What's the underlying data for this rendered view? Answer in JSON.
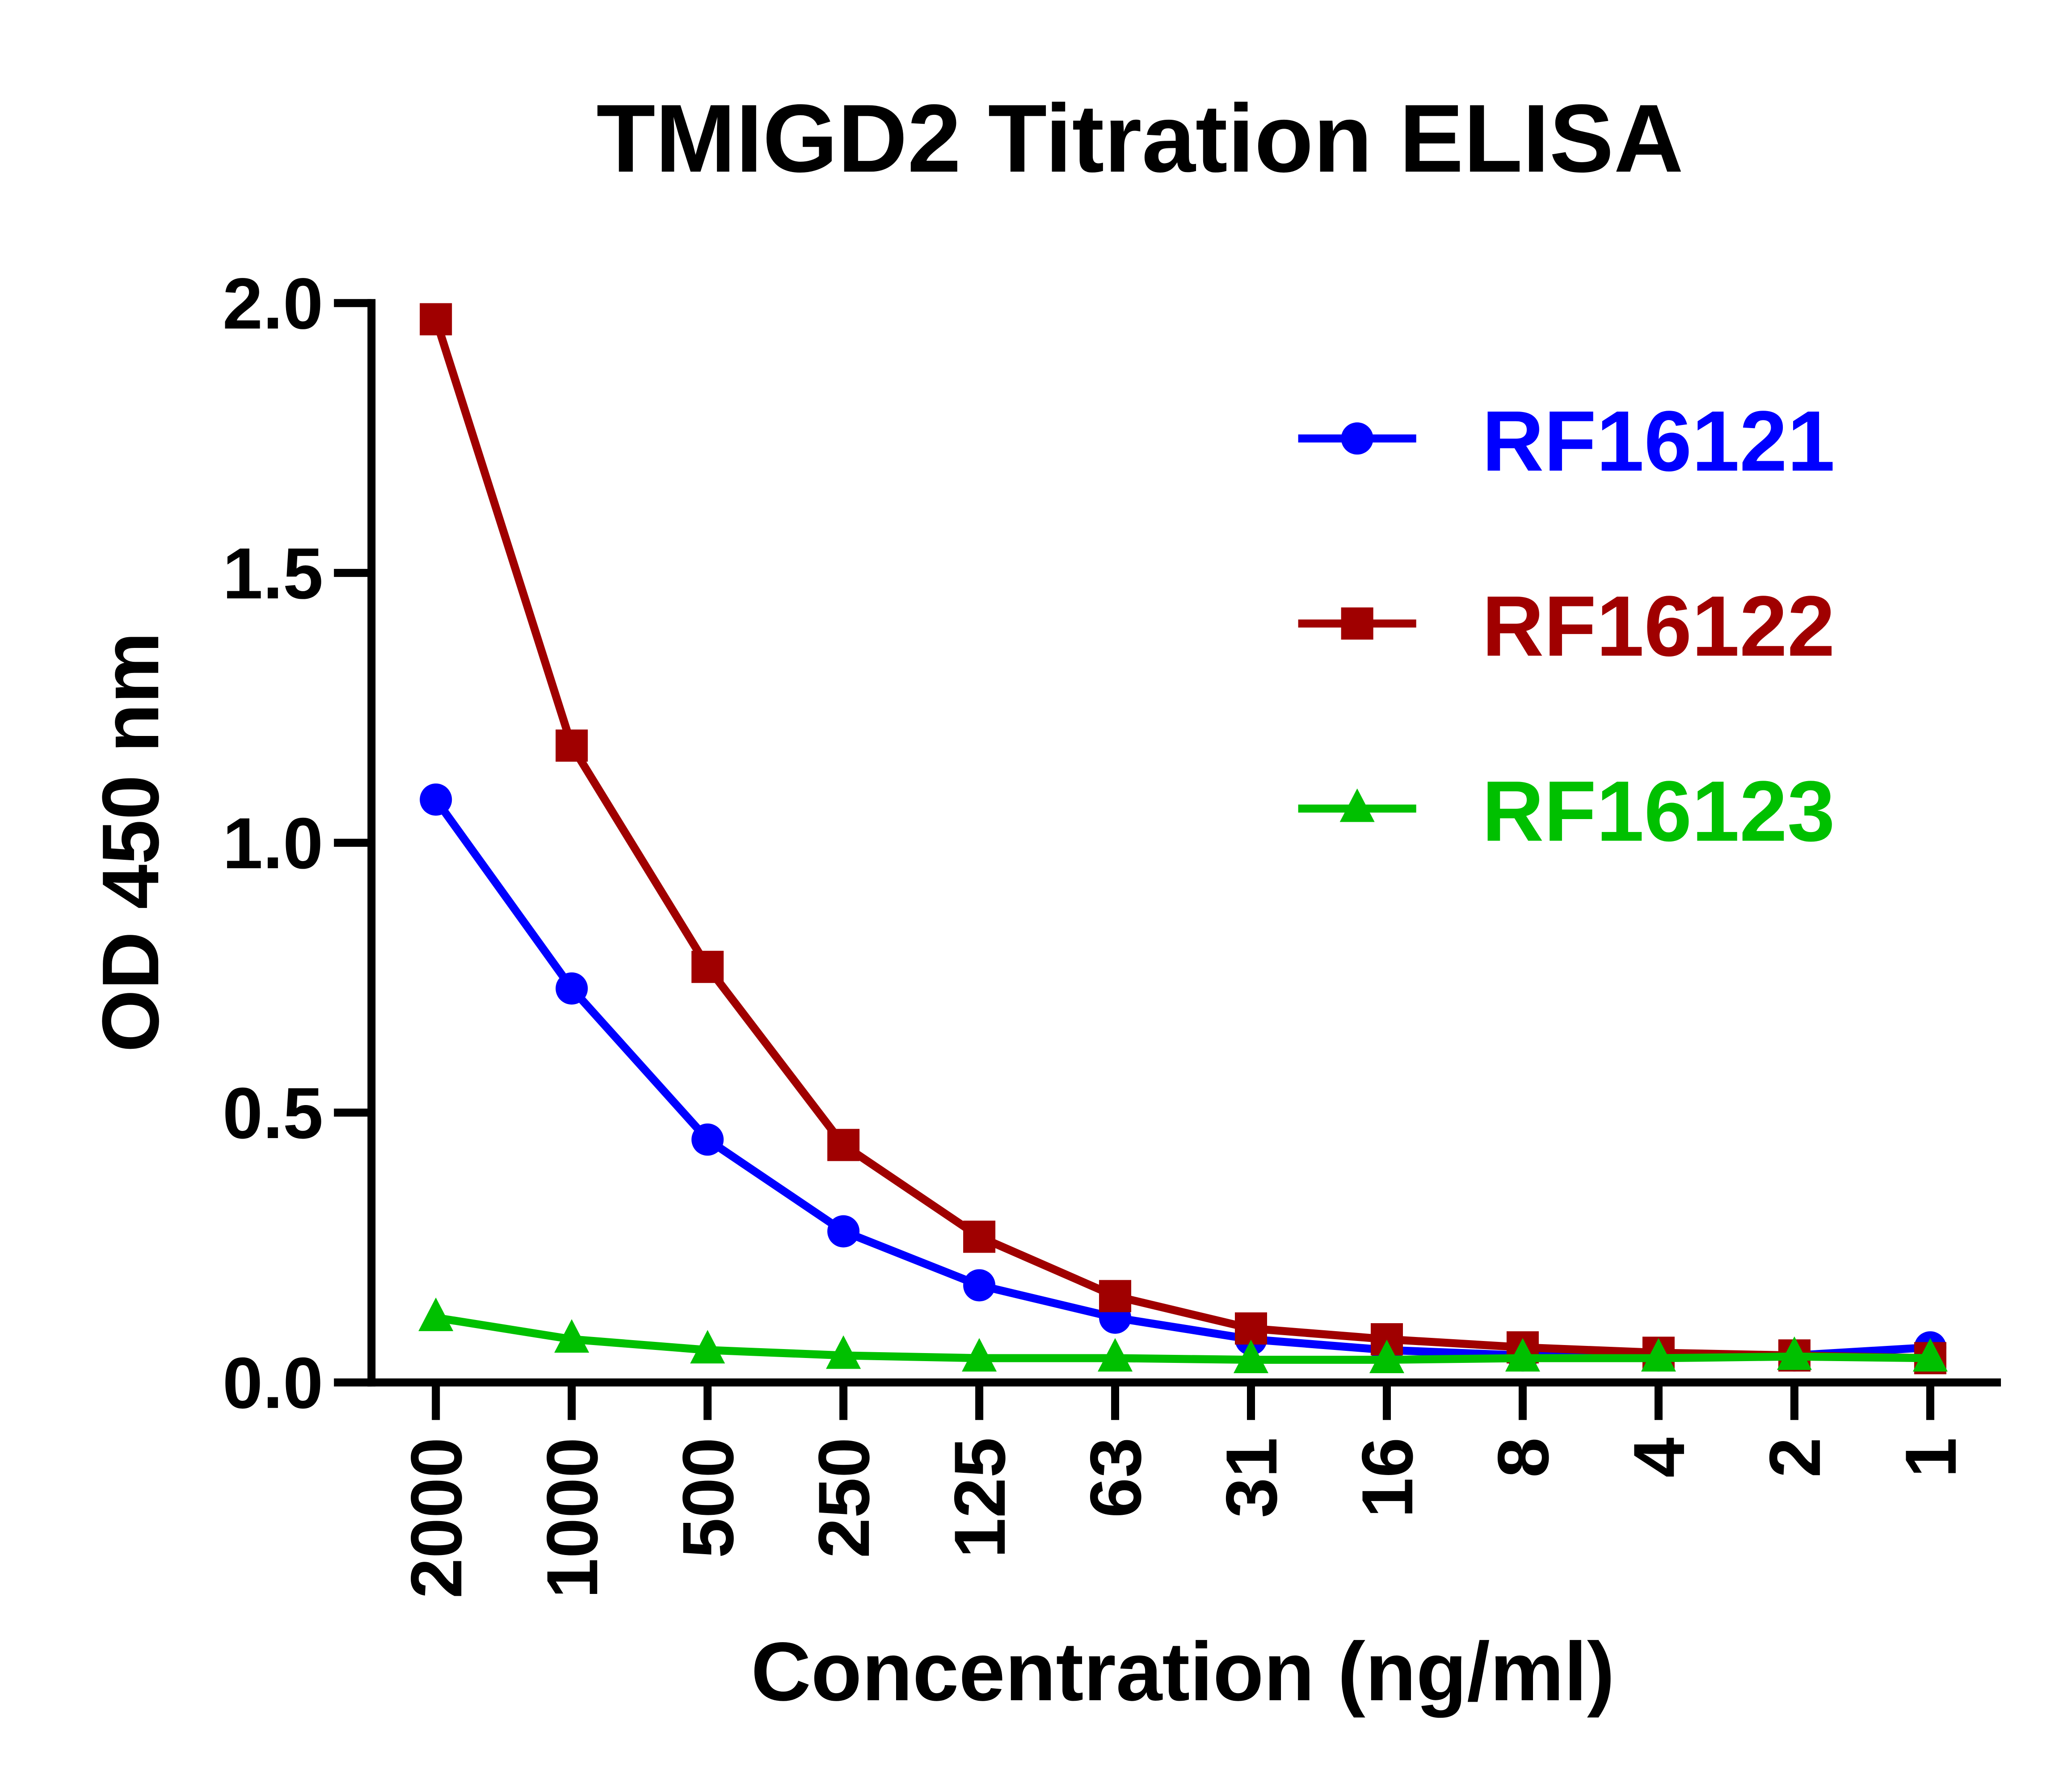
{
  "chart_data": {
    "type": "line",
    "title": "TMIGD2 Titration ELISA",
    "xlabel": "Concentration (ng/ml)",
    "ylabel": "OD 450 nm",
    "categories": [
      "2000",
      "1000",
      "500",
      "250",
      "125",
      "63",
      "31",
      "16",
      "8",
      "4",
      "2",
      "1"
    ],
    "ylim": [
      0,
      2.0
    ],
    "yticks": [
      "0.0",
      "0.5",
      "1.0",
      "1.5",
      "2.0"
    ],
    "grid": false,
    "legend": "top-right",
    "series": [
      {
        "name": "RF16121",
        "color": "#0000ff",
        "marker": "circle",
        "values": [
          1.08,
          0.73,
          0.45,
          0.28,
          0.18,
          0.12,
          0.08,
          0.06,
          0.05,
          0.05,
          0.05,
          0.065
        ]
      },
      {
        "name": "RF16122",
        "color": "#a00000",
        "marker": "square",
        "values": [
          1.97,
          1.18,
          0.77,
          0.44,
          0.27,
          0.16,
          0.1,
          0.08,
          0.065,
          0.055,
          0.05,
          0.045
        ]
      },
      {
        "name": "RF16123",
        "color": "#00c000",
        "marker": "triangle",
        "values": [
          0.12,
          0.08,
          0.06,
          0.05,
          0.045,
          0.045,
          0.042,
          0.042,
          0.045,
          0.045,
          0.048,
          0.045
        ]
      }
    ]
  }
}
